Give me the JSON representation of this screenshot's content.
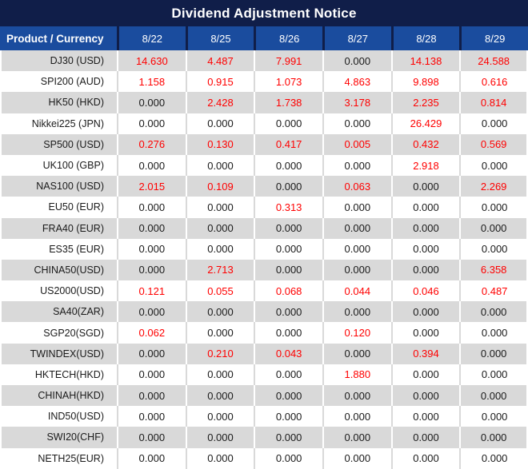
{
  "title": "Dividend Adjustment Notice",
  "colors": {
    "title_bg": "#101e49",
    "header_bg": "#1a4c9e",
    "row_alt_bg": "#d9d9d9",
    "row_bg": "#ffffff",
    "nonzero_value_color": "#ff0000",
    "zero_value_color": "#1a1a1a",
    "header_text": "#ffffff"
  },
  "table": {
    "product_header": "Product / Currency",
    "date_headers": [
      "8/22",
      "8/25",
      "8/26",
      "8/27",
      "8/28",
      "8/29"
    ],
    "rows": [
      {
        "product": "DJ30 (USD)",
        "values": [
          "14.630",
          "4.487",
          "7.991",
          "0.000",
          "14.138",
          "24.588"
        ]
      },
      {
        "product": "SPI200 (AUD)",
        "values": [
          "1.158",
          "0.915",
          "1.073",
          "4.863",
          "9.898",
          "0.616"
        ]
      },
      {
        "product": "HK50 (HKD)",
        "values": [
          "0.000",
          "2.428",
          "1.738",
          "3.178",
          "2.235",
          "0.814"
        ]
      },
      {
        "product": "Nikkei225 (JPN)",
        "values": [
          "0.000",
          "0.000",
          "0.000",
          "0.000",
          "26.429",
          "0.000"
        ]
      },
      {
        "product": "SP500 (USD)",
        "values": [
          "0.276",
          "0.130",
          "0.417",
          "0.005",
          "0.432",
          "0.569"
        ]
      },
      {
        "product": "UK100 (GBP)",
        "values": [
          "0.000",
          "0.000",
          "0.000",
          "0.000",
          "2.918",
          "0.000"
        ]
      },
      {
        "product": "NAS100 (USD)",
        "values": [
          "2.015",
          "0.109",
          "0.000",
          "0.063",
          "0.000",
          "2.269"
        ]
      },
      {
        "product": "EU50 (EUR)",
        "values": [
          "0.000",
          "0.000",
          "0.313",
          "0.000",
          "0.000",
          "0.000"
        ]
      },
      {
        "product": "FRA40 (EUR)",
        "values": [
          "0.000",
          "0.000",
          "0.000",
          "0.000",
          "0.000",
          "0.000"
        ]
      },
      {
        "product": "ES35 (EUR)",
        "values": [
          "0.000",
          "0.000",
          "0.000",
          "0.000",
          "0.000",
          "0.000"
        ]
      },
      {
        "product": "CHINA50(USD)",
        "values": [
          "0.000",
          "2.713",
          "0.000",
          "0.000",
          "0.000",
          "6.358"
        ]
      },
      {
        "product": "US2000(USD)",
        "values": [
          "0.121",
          "0.055",
          "0.068",
          "0.044",
          "0.046",
          "0.487"
        ]
      },
      {
        "product": "SA40(ZAR)",
        "values": [
          "0.000",
          "0.000",
          "0.000",
          "0.000",
          "0.000",
          "0.000"
        ]
      },
      {
        "product": "SGP20(SGD)",
        "values": [
          "0.062",
          "0.000",
          "0.000",
          "0.120",
          "0.000",
          "0.000"
        ]
      },
      {
        "product": "TWINDEX(USD)",
        "values": [
          "0.000",
          "0.210",
          "0.043",
          "0.000",
          "0.394",
          "0.000"
        ]
      },
      {
        "product": "HKTECH(HKD)",
        "values": [
          "0.000",
          "0.000",
          "0.000",
          "1.880",
          "0.000",
          "0.000"
        ]
      },
      {
        "product": "CHINAH(HKD)",
        "values": [
          "0.000",
          "0.000",
          "0.000",
          "0.000",
          "0.000",
          "0.000"
        ]
      },
      {
        "product": "IND50(USD)",
        "values": [
          "0.000",
          "0.000",
          "0.000",
          "0.000",
          "0.000",
          "0.000"
        ]
      },
      {
        "product": "SWI20(CHF)",
        "values": [
          "0.000",
          "0.000",
          "0.000",
          "0.000",
          "0.000",
          "0.000"
        ]
      },
      {
        "product": "NETH25(EUR)",
        "values": [
          "0.000",
          "0.000",
          "0.000",
          "0.000",
          "0.000",
          "0.000"
        ]
      }
    ]
  }
}
